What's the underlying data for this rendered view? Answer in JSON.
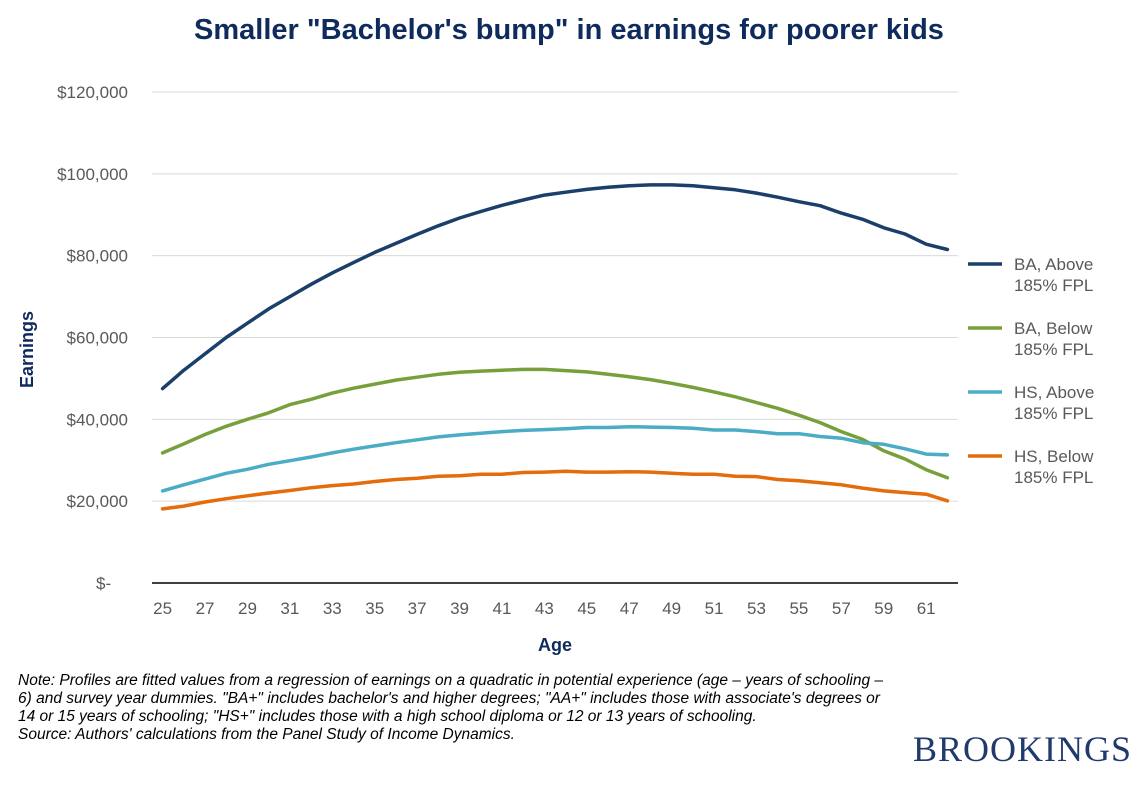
{
  "title": "Smaller \"Bachelor's bump\" in earnings for poorer kids",
  "note_lines": [
    "Note: Profiles are fitted values from a regression of earnings on a quadratic in potential experience (age – years of schooling – 6) and survey year dummies. \"BA+\" includes bachelor's and higher degrees; \"AA+\" includes those with associate's degrees or 14 or 15 years of schooling; \"HS+\" includes those with a high school diploma or 12 or 13 years of schooling.",
    "Source: Authors' calculations from the Panel Study of Income Dynamics."
  ],
  "brand": "BROOKINGS",
  "chart_data": {
    "type": "line",
    "title": "Smaller \"Bachelor's bump\" in earnings for poorer kids",
    "xlabel": "Age",
    "ylabel": "Earnings",
    "ylim": [
      0,
      120000
    ],
    "yticks": [
      0,
      20000,
      40000,
      60000,
      80000,
      100000,
      120000
    ],
    "ytick_labels": [
      "$-",
      "$20,000",
      "$40,000",
      "$60,000",
      "$80,000",
      "$100,000",
      "$120,000"
    ],
    "xticks": [
      25,
      27,
      29,
      31,
      33,
      35,
      37,
      39,
      41,
      43,
      45,
      47,
      49,
      51,
      53,
      55,
      57,
      59,
      61
    ],
    "xtick_labels": [
      "25",
      "27",
      "29",
      "31",
      "33",
      "35",
      "37",
      "39",
      "41",
      "43",
      "45",
      "47",
      "49",
      "51",
      "53",
      "55",
      "57",
      "59",
      "61"
    ],
    "x": [
      25,
      26,
      27,
      28,
      29,
      30,
      31,
      32,
      33,
      34,
      35,
      36,
      37,
      38,
      39,
      40,
      41,
      42,
      43,
      44,
      45,
      46,
      47,
      48,
      49,
      50,
      51,
      52,
      53,
      54,
      55,
      56,
      57,
      58,
      59,
      60,
      61,
      62
    ],
    "grid": "horizontal",
    "legend_position": "right",
    "series": [
      {
        "name": "BA, Above 185% FPL",
        "legend_lines": [
          "BA, Above",
          "185% FPL"
        ],
        "color": "#1b3f6b",
        "values": [
          47500,
          52000,
          56000,
          60000,
          63500,
          67000,
          70000,
          73000,
          75800,
          78300,
          80800,
          83000,
          85200,
          87300,
          89200,
          90800,
          92300,
          93600,
          94800,
          95500,
          96200,
          96700,
          97100,
          97300,
          97300,
          97100,
          96600,
          96100,
          95300,
          94300,
          93200,
          92200,
          90400,
          88900,
          86800,
          85300,
          82800,
          81500
        ]
      },
      {
        "name": "BA, Below 185% FPL",
        "legend_lines": [
          "BA, Below",
          "185% FPL"
        ],
        "color": "#77a03c",
        "values": [
          31800,
          34000,
          36300,
          38300,
          40000,
          41600,
          43600,
          44900,
          46400,
          47600,
          48600,
          49600,
          50300,
          51000,
          51500,
          51800,
          52000,
          52200,
          52200,
          51900,
          51600,
          51000,
          50400,
          49700,
          48800,
          47800,
          46700,
          45500,
          44100,
          42700,
          41000,
          39200,
          37000,
          35100,
          32300,
          30300,
          27700,
          25700
        ]
      },
      {
        "name": "HS, Above 185% FPL",
        "legend_lines": [
          "HS, Above",
          "185% FPL"
        ],
        "color": "#4bacc6",
        "values": [
          22500,
          24000,
          25400,
          26800,
          27800,
          29000,
          29900,
          30800,
          31800,
          32700,
          33500,
          34300,
          35000,
          35700,
          36200,
          36600,
          37000,
          37300,
          37500,
          37700,
          38000,
          38000,
          38200,
          38100,
          38000,
          37800,
          37400,
          37400,
          37000,
          36500,
          36500,
          35800,
          35400,
          34300,
          33900,
          32800,
          31500,
          31300
        ]
      },
      {
        "name": "HS, Below 185% FPL",
        "legend_lines": [
          "HS, Below",
          "185% FPL"
        ],
        "color": "#e46c0a",
        "values": [
          18100,
          18800,
          19800,
          20600,
          21300,
          22000,
          22600,
          23300,
          23800,
          24200,
          24800,
          25300,
          25600,
          26100,
          26200,
          26600,
          26600,
          27000,
          27100,
          27300,
          27100,
          27100,
          27200,
          27100,
          26800,
          26600,
          26600,
          26100,
          26000,
          25300,
          25000,
          24500,
          24000,
          23200,
          22500,
          22100,
          21700,
          20100
        ]
      }
    ]
  }
}
